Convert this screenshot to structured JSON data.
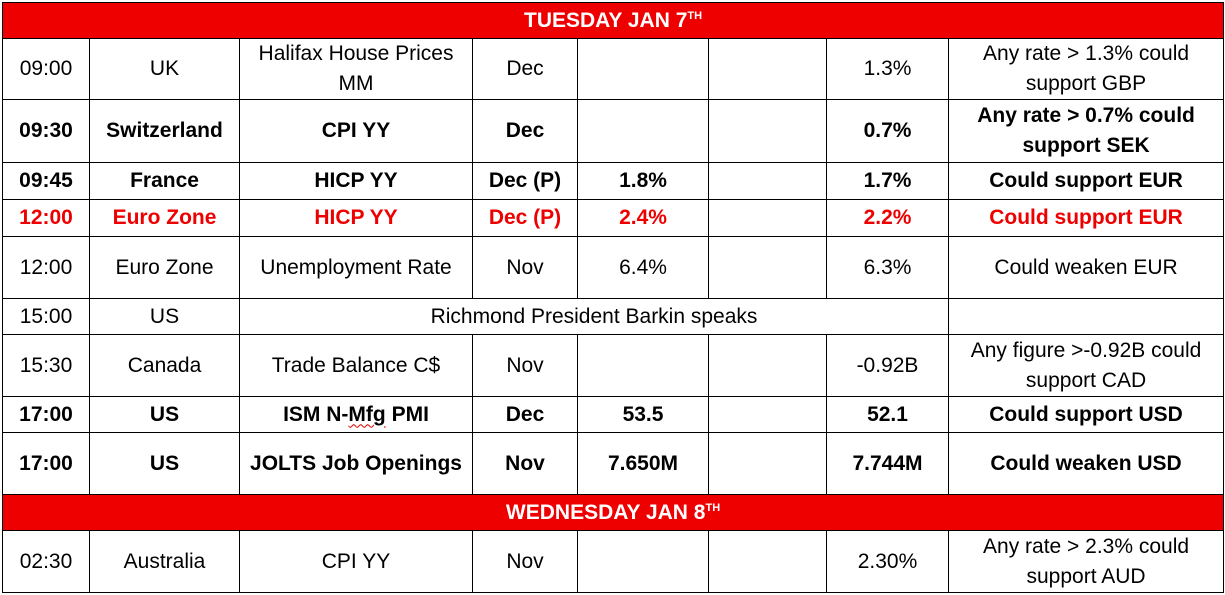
{
  "days": [
    {
      "name": "TUESDAY JAN 7",
      "sup": "TH"
    },
    {
      "name": "WEDNESDAY JAN 8",
      "sup": "TH"
    }
  ],
  "rows": [
    {
      "time": "09:00",
      "country": "UK",
      "event": "Halifax House Prices MM",
      "period": "Dec",
      "forecast": "",
      "actual": "",
      "previous": "1.3%",
      "note": "Any rate > 1.3% could support GBP"
    },
    {
      "time": "09:30",
      "country": "Switzerland",
      "event": "CPI YY",
      "period": "Dec",
      "forecast": "",
      "actual": "",
      "previous": "0.7%",
      "note": "Any rate > 0.7% could support SEK"
    },
    {
      "time": "09:45",
      "country": "France",
      "event": "HICP YY",
      "period": "Dec (P)",
      "forecast": "1.8%",
      "actual": "",
      "previous": "1.7%",
      "note": "Could support EUR"
    },
    {
      "time": "12:00",
      "country": "Euro Zone",
      "event": "HICP YY",
      "period": "Dec (P)",
      "forecast": "2.4%",
      "actual": "",
      "previous": "2.2%",
      "note": "Could support EUR"
    },
    {
      "time": "12:00",
      "country": "Euro Zone",
      "event": "Unemployment Rate",
      "period": "Nov",
      "forecast": "6.4%",
      "actual": "",
      "previous": "6.3%",
      "note": "Could weaken EUR"
    },
    {
      "time": "15:00",
      "country": "US",
      "event": "Richmond President Barkin speaks"
    },
    {
      "time": "15:30",
      "country": "Canada",
      "event": "Trade Balance C$",
      "period": "Nov",
      "forecast": "",
      "actual": "",
      "previous": "-0.92B",
      "note": "Any figure >-0.92B could support CAD"
    },
    {
      "time": "17:00",
      "country": "US",
      "event_pre": "ISM N-",
      "event_mid": "Mfg",
      "event_post": " PMI",
      "period": "Dec",
      "forecast": "53.5",
      "actual": "",
      "previous": "52.1",
      "note": "Could support USD"
    },
    {
      "time": "17:00",
      "country": "US",
      "event": "JOLTS Job Openings",
      "period": "Nov",
      "forecast": "7.650M",
      "actual": "",
      "previous": "7.744M",
      "note": "Could weaken USD"
    },
    {
      "time": "02:30",
      "country": "Australia",
      "event": "CPI YY",
      "period": "Nov",
      "forecast": "",
      "actual": "",
      "previous": "2.30%",
      "note": "Any rate > 2.3% could support AUD"
    }
  ],
  "colors": {
    "header_bg": "#ee0000",
    "header_text": "#ffffff",
    "highlight_text": "#ee0000",
    "border": "#000000"
  }
}
